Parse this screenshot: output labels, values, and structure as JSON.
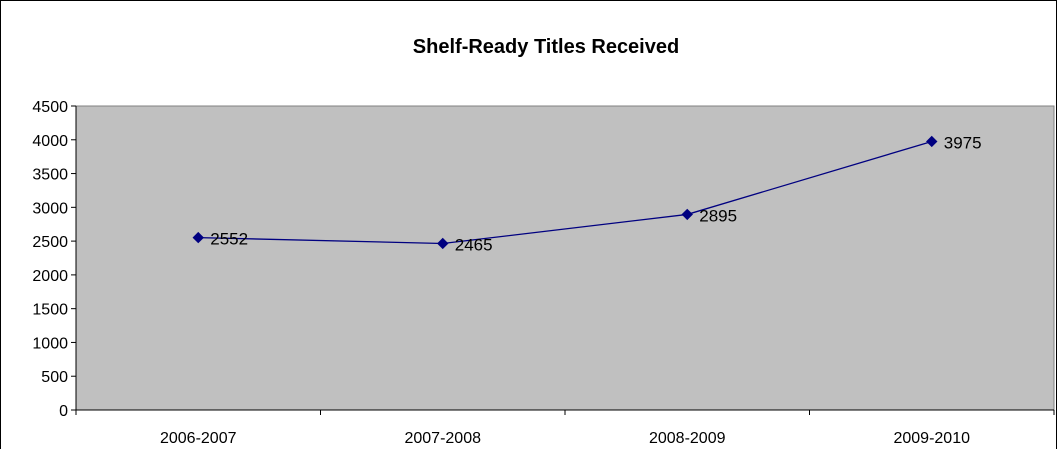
{
  "chart_data": {
    "type": "line",
    "title": "Shelf-Ready Titles Received",
    "categories": [
      "2006-2007",
      "2007-2008",
      "2008-2009",
      "2009-2010"
    ],
    "values": [
      2552,
      2465,
      2895,
      3975
    ],
    "data_labels": [
      "2552",
      "2465",
      "2895",
      "3975"
    ],
    "y_ticks": [
      "0",
      "500",
      "1000",
      "1500",
      "2000",
      "2500",
      "3000",
      "3500",
      "4000",
      "4500"
    ],
    "ylim": [
      0,
      4500
    ],
    "xlabel": "",
    "ylabel": "",
    "grid": false,
    "legend": "none",
    "colors": {
      "plot_background": "#c0c0c0",
      "series_line": "#000080",
      "marker": "#000080"
    }
  }
}
